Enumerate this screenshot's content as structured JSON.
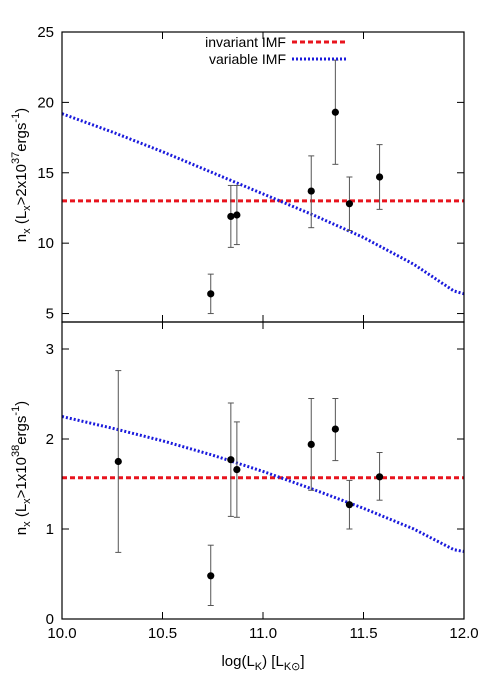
{
  "chart_data": [
    {
      "type": "scatter",
      "panel": "top",
      "ylabel_parts": {
        "n": "n",
        "nsub": "x",
        "open": " (L",
        "lsub": "x",
        "mid": ">2x10",
        "exp": "37",
        "unit": "ergs",
        "unitexp": "-1",
        "close": ")"
      },
      "xlim": [
        10.0,
        12.0
      ],
      "ylim": [
        4.4,
        25
      ],
      "yticks": [
        5,
        10,
        15,
        20,
        25
      ],
      "legend": {
        "placement": "top-center",
        "entries": [
          {
            "label": "invariant IMF",
            "color": "#e8141e",
            "style": "dashed"
          },
          {
            "label": "variable IMF",
            "color": "#1a1adc",
            "style": "dotted"
          }
        ]
      },
      "points": [
        {
          "x": 10.74,
          "y": 6.4,
          "lo": 5.0,
          "hi": 7.8
        },
        {
          "x": 10.84,
          "y": 11.9,
          "lo": 9.7,
          "hi": 14.1
        },
        {
          "x": 10.87,
          "y": 12.0,
          "lo": 9.9,
          "hi": 14.1
        },
        {
          "x": 11.24,
          "y": 13.7,
          "lo": 11.1,
          "hi": 16.2
        },
        {
          "x": 11.36,
          "y": 19.3,
          "lo": 15.6,
          "hi": 23.0
        },
        {
          "x": 11.43,
          "y": 12.8,
          "lo": 10.9,
          "hi": 14.7
        },
        {
          "x": 11.58,
          "y": 14.7,
          "lo": 12.4,
          "hi": 17.0
        }
      ],
      "invariant_imf": {
        "y": 13.0
      },
      "variable_imf": {
        "x": [
          10.0,
          10.25,
          10.5,
          10.75,
          11.0,
          11.25,
          11.5,
          11.75,
          11.95,
          12.0
        ],
        "y": [
          19.2,
          17.9,
          16.5,
          15.0,
          13.5,
          12.0,
          10.4,
          8.5,
          6.6,
          6.4
        ]
      }
    },
    {
      "type": "scatter",
      "panel": "bottom",
      "ylabel_parts": {
        "n": "n",
        "nsub": "x",
        "open": " (L",
        "lsub": "x",
        "mid": ">1x10",
        "exp": "38",
        "unit": "ergs",
        "unitexp": "-1",
        "close": ")"
      },
      "xlabel_parts": {
        "a": "log(L",
        "asub": "K",
        "b": ") [L",
        "bsub": "K⊙",
        "c": "]"
      },
      "xlim": [
        10.0,
        12.0
      ],
      "ylim": [
        0,
        3.3
      ],
      "xticks": [
        "10.0",
        "10.5",
        "11.0",
        "11.5",
        "12.0"
      ],
      "xtick_values": [
        10.0,
        10.5,
        11.0,
        11.5,
        12.0
      ],
      "yticks": [
        0,
        1,
        2,
        3
      ],
      "points": [
        {
          "x": 10.28,
          "y": 1.75,
          "lo": 0.74,
          "hi": 2.76
        },
        {
          "x": 10.74,
          "y": 0.48,
          "lo": 0.15,
          "hi": 0.82
        },
        {
          "x": 10.84,
          "y": 1.77,
          "lo": 1.14,
          "hi": 2.4
        },
        {
          "x": 10.87,
          "y": 1.66,
          "lo": 1.13,
          "hi": 2.19
        },
        {
          "x": 11.24,
          "y": 1.94,
          "lo": 1.43,
          "hi": 2.45
        },
        {
          "x": 11.36,
          "y": 2.11,
          "lo": 1.76,
          "hi": 2.45
        },
        {
          "x": 11.43,
          "y": 1.27,
          "lo": 1.0,
          "hi": 1.54
        },
        {
          "x": 11.58,
          "y": 1.58,
          "lo": 1.32,
          "hi": 1.85
        }
      ],
      "invariant_imf": {
        "y": 1.57
      },
      "variable_imf": {
        "x": [
          10.0,
          10.25,
          10.5,
          10.75,
          11.0,
          11.25,
          11.5,
          11.75,
          11.95,
          12.0
        ],
        "y": [
          2.25,
          2.12,
          1.98,
          1.82,
          1.64,
          1.44,
          1.23,
          1.0,
          0.77,
          0.75
        ]
      }
    }
  ]
}
